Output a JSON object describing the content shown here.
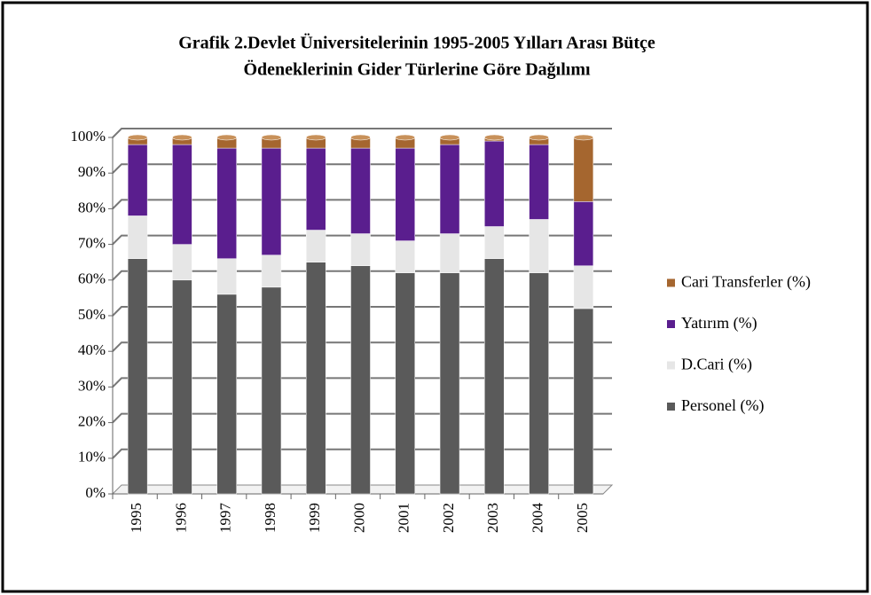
{
  "chart_data": {
    "type": "stacked_bar",
    "title": [
      "Grafik 2.Devlet Üniversitelerinin  1995-2005 Yılları Arası Bütçe",
      "Ödeneklerinin Gider Türlerine Göre  Dağılımı"
    ],
    "categories": [
      "1995",
      "1996",
      "1997",
      "1998",
      "1999",
      "2000",
      "2001",
      "2002",
      "2003",
      "2004",
      "2005"
    ],
    "series": [
      {
        "name": "Personel (%)",
        "color": "#5a5a5a",
        "values": [
          66,
          60,
          56,
          58,
          65,
          64,
          62,
          62,
          66,
          62,
          52
        ]
      },
      {
        "name": "D.Cari (%)",
        "color": "#e6e6e6",
        "values": [
          12,
          10,
          10,
          9,
          9,
          9,
          9,
          11,
          9,
          15,
          12
        ]
      },
      {
        "name": "Yatırım (%)",
        "color": "#5a1e8e",
        "values": [
          20,
          28,
          31,
          30,
          23,
          24,
          26,
          25,
          24,
          21,
          18
        ]
      },
      {
        "name": "Cari Transferler (%)",
        "color": "#a5662f",
        "values": [
          2,
          2,
          3,
          3,
          3,
          3,
          3,
          2,
          1,
          2,
          18
        ]
      }
    ],
    "ylim": [
      0,
      100
    ],
    "yticks": [
      {
        "value": 0,
        "label": "0%"
      },
      {
        "value": 10,
        "label": "10%"
      },
      {
        "value": 20,
        "label": "20%"
      },
      {
        "value": 30,
        "label": "30%"
      },
      {
        "value": 40,
        "label": "40%"
      },
      {
        "value": 50,
        "label": "50%"
      },
      {
        "value": 60,
        "label": "60%"
      },
      {
        "value": 70,
        "label": "70%"
      },
      {
        "value": 80,
        "label": "80%"
      },
      {
        "value": 90,
        "label": "90%"
      },
      {
        "value": 100,
        "label": "100%"
      }
    ],
    "grid": true,
    "legend": "right"
  }
}
